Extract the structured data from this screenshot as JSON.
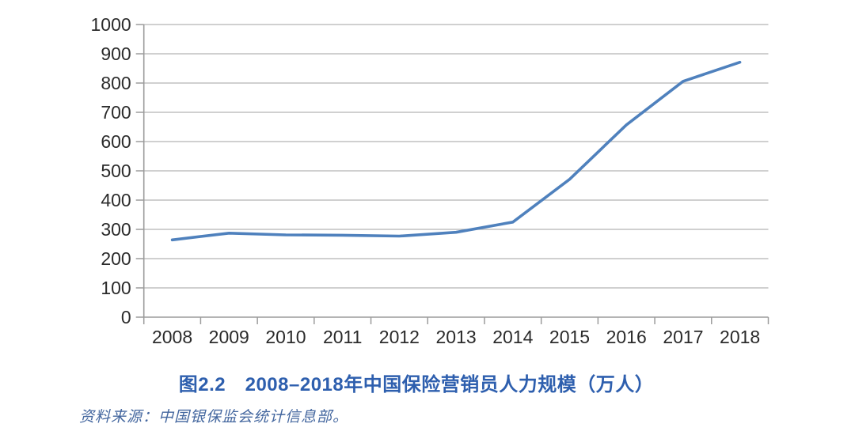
{
  "chart_data": {
    "type": "line",
    "title": "图2.2　2008–2018年中国保险营销员人力规模（万人）",
    "x": [
      "2008",
      "2009",
      "2010",
      "2011",
      "2012",
      "2013",
      "2014",
      "2015",
      "2016",
      "2017",
      "2018"
    ],
    "series": [
      {
        "name": "保险营销员人力规模（万人）",
        "values": [
          264,
          287,
          281,
          280,
          277,
          290,
          325,
          471,
          657,
          806,
          871
        ]
      }
    ],
    "xlabel": "",
    "ylabel": "",
    "ylim": [
      0,
      1000
    ],
    "ytick_interval": 100,
    "yticks": [
      "0",
      "100",
      "200",
      "300",
      "400",
      "500",
      "600",
      "700",
      "800",
      "900",
      "1000"
    ],
    "grid": "horizontal",
    "legend": "none",
    "line_color": "#4f81bd",
    "grid_color": "#b3b3b3",
    "axis_color": "#9c9c9c",
    "tick_label_color": "#2b2b2b"
  },
  "caption": {
    "color": "#2e5fae"
  },
  "source_note": {
    "text": "资料来源：中国银保监会统计信息部。",
    "color": "#44679f"
  }
}
